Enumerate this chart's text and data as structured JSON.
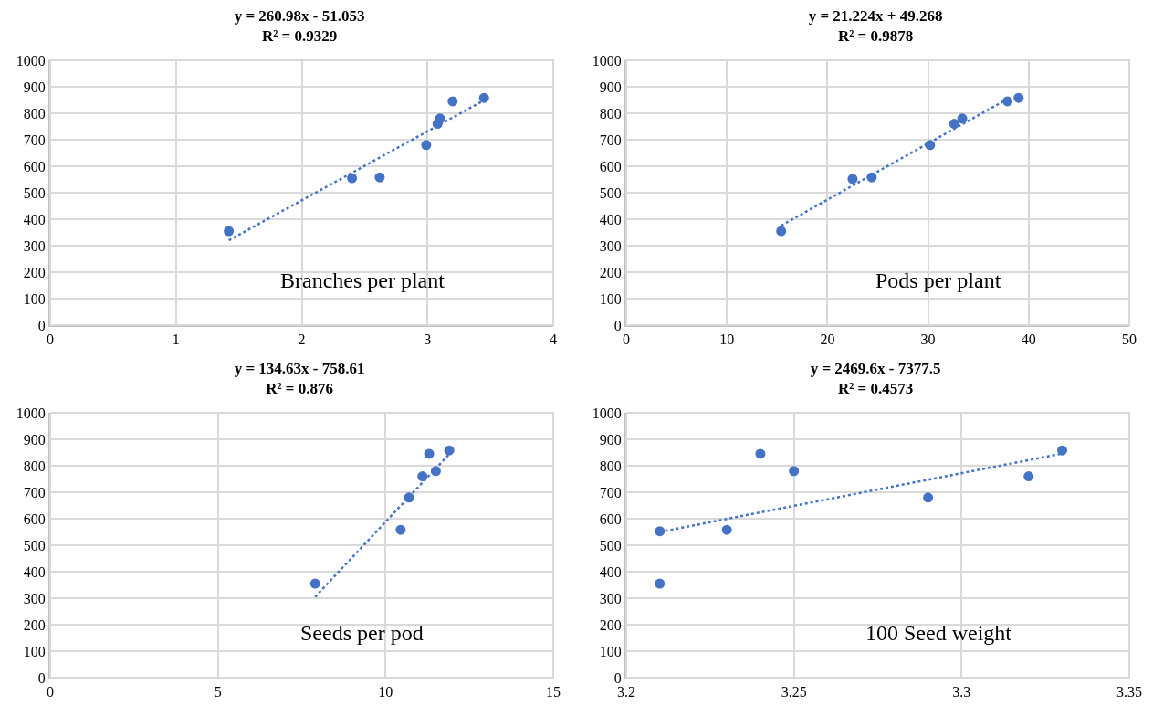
{
  "chart_data": [
    {
      "type": "scatter",
      "title": "y = 260.98x - 51.053",
      "subtitle": "R² = 0.9329",
      "annotations": [
        "Branches per plant"
      ],
      "xlim": [
        0,
        4
      ],
      "xticks": [
        0,
        1,
        2,
        3,
        4
      ],
      "ylim": [
        0,
        1000
      ],
      "yticks": [
        0,
        100,
        200,
        300,
        400,
        500,
        600,
        700,
        800,
        900,
        1000
      ],
      "grid": true,
      "series": [
        {
          "marker": "circle",
          "color": "#4472c4",
          "x": [
            1.42,
            2.4,
            2.62,
            2.99,
            3.08,
            3.1,
            3.2,
            3.45
          ],
          "values": [
            355,
            555,
            558,
            680,
            760,
            780,
            845,
            858
          ]
        },
        {
          "type": "line",
          "marker": "none",
          "line_style": "dotted",
          "color": "#4472c4",
          "x": [
            1.42,
            3.45
          ],
          "values": [
            320,
            849
          ]
        }
      ]
    },
    {
      "type": "scatter",
      "title": "y = 21.224x + 49.268",
      "subtitle": "R² = 0.9878",
      "annotations": [
        "Pods per plant"
      ],
      "xlim": [
        0,
        50
      ],
      "xticks": [
        0,
        10,
        20,
        30,
        40,
        50
      ],
      "ylim": [
        0,
        1000
      ],
      "yticks": [
        0,
        100,
        200,
        300,
        400,
        500,
        600,
        700,
        800,
        900,
        1000
      ],
      "grid": true,
      "series": [
        {
          "marker": "circle",
          "color": "#4472c4",
          "x": [
            15.4,
            22.5,
            24.4,
            30.2,
            32.6,
            33.4,
            37.9,
            39
          ],
          "values": [
            355,
            552,
            558,
            680,
            760,
            780,
            845,
            858
          ]
        },
        {
          "type": "line",
          "marker": "none",
          "line_style": "dotted",
          "color": "#4472c4",
          "x": [
            15.4,
            38
          ],
          "values": [
            376,
            856
          ]
        }
      ]
    },
    {
      "type": "scatter",
      "title": "y = 134.63x - 758.61",
      "subtitle": "R² = 0.876",
      "annotations": [
        "Seeds per pod"
      ],
      "xlim": [
        0,
        15
      ],
      "xticks": [
        0,
        5,
        10,
        15
      ],
      "ylim": [
        0,
        1000
      ],
      "yticks": [
        0,
        100,
        200,
        300,
        400,
        500,
        600,
        700,
        800,
        900,
        1000
      ],
      "grid": true,
      "series": [
        {
          "marker": "circle",
          "color": "#4472c4",
          "x": [
            7.9,
            10.35,
            10.45,
            10.7,
            11.1,
            11.5,
            11.3,
            11.9
          ],
          "values": [
            355,
            null,
            558,
            680,
            760,
            780,
            845,
            858
          ]
        },
        {
          "type": "line",
          "marker": "none",
          "line_style": "dotted",
          "color": "#4472c4",
          "x": [
            7.9,
            11.9
          ],
          "values": [
            305,
            844
          ]
        }
      ]
    },
    {
      "type": "scatter",
      "title": "y = 2469.6x - 7377.5",
      "subtitle": "R² = 0.4573",
      "annotations": [
        "100 Seed weight"
      ],
      "xlim": [
        3.2,
        3.35
      ],
      "xticks": [
        3.2,
        3.25,
        3.3,
        3.35
      ],
      "ylim": [
        0,
        1000
      ],
      "yticks": [
        0,
        100,
        200,
        300,
        400,
        500,
        600,
        700,
        800,
        900,
        1000
      ],
      "grid": true,
      "series": [
        {
          "marker": "circle",
          "color": "#4472c4",
          "x": [
            3.21,
            3.21,
            3.23,
            3.24,
            3.25,
            3.29,
            3.32,
            3.33
          ],
          "values": [
            355,
            553,
            558,
            845,
            780,
            680,
            760,
            858
          ]
        },
        {
          "type": "line",
          "marker": "none",
          "line_style": "dotted",
          "color": "#4472c4",
          "x": [
            3.21,
            3.33
          ],
          "values": [
            550,
            846
          ]
        }
      ]
    }
  ]
}
